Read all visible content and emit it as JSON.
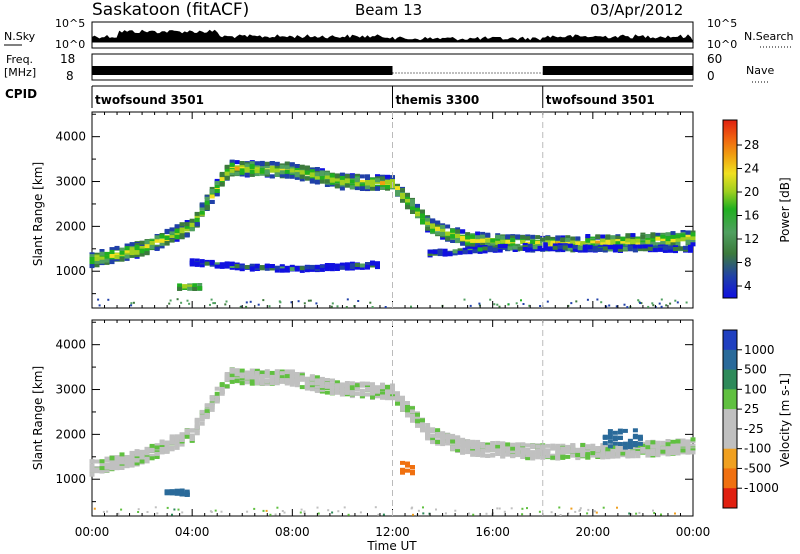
{
  "header": {
    "station": "Saskatoon (fitACF)",
    "beam": "Beam 13",
    "date": "03/Apr/2012"
  },
  "top_panels": {
    "nsky_label": "N.Sky",
    "nsky_ticks": [
      "10^5",
      "10^0"
    ],
    "nsearch_label": "N.Search",
    "nsearch_ticks": [
      "10^5",
      "10^0"
    ],
    "freq_label": "Freq.",
    "freq_unit": "[MHz]",
    "freq_ticks": [
      "18",
      "8"
    ],
    "nave_label": "Nave",
    "nave_ticks": [
      "60",
      "0"
    ],
    "cpid_label": "CPID",
    "cpid_segments": [
      {
        "label": "twofsound 3501",
        "start_hour": 0,
        "end_hour": 12
      },
      {
        "label": "themis 3300",
        "start_hour": 12,
        "end_hour": 18
      },
      {
        "label": "twofsound 3501",
        "start_hour": 18,
        "end_hour": 24
      }
    ]
  },
  "chart_data": [
    {
      "type": "heatmap",
      "quantity": "Power",
      "ylabel": "Slant Range [km]",
      "xlabel": "Time UT",
      "x_ticks": [
        "00:00",
        "04:00",
        "08:00",
        "12:00",
        "16:00",
        "20:00",
        "00:00"
      ],
      "x_range_hours": [
        0,
        24
      ],
      "y_ticks": [
        "1000",
        "2000",
        "3000",
        "4000"
      ],
      "ylim": [
        180,
        4550
      ],
      "colorbar_label": "Power [dB]",
      "colorbar_ticks": [
        "28",
        "24",
        "20",
        "16",
        "12",
        "8",
        "4"
      ],
      "colorbar_colors": [
        "#1010e0",
        "#2040a8",
        "#3c7a3c",
        "#50a060",
        "#20b020",
        "#a0d020",
        "#f0e020",
        "#f0a010",
        "#f06010",
        "#e02010"
      ],
      "features": [
        {
          "name": "main-echo-band",
          "hours": [
            0,
            2,
            4,
            5.5,
            8,
            10,
            12,
            13.5,
            15,
            18,
            21,
            23,
            24
          ],
          "range_km": [
            1250,
            1500,
            2000,
            3300,
            3250,
            3000,
            2950,
            2000,
            1700,
            1600,
            1650,
            1700,
            1750
          ],
          "power_db": 18
        },
        {
          "name": "lower-band",
          "hours": [
            4,
            6,
            8,
            10,
            11.5
          ],
          "range_km": [
            1200,
            1100,
            1050,
            1100,
            1150
          ],
          "power_db": 8
        },
        {
          "name": "near-range-patch",
          "hours": [
            3.5,
            4.4
          ],
          "range_km": [
            600,
            700
          ],
          "power_db": 20
        },
        {
          "name": "late-band",
          "hours": [
            13.5,
            16,
            18,
            20,
            24
          ],
          "range_km": [
            1400,
            1500,
            1550,
            1500,
            1500
          ],
          "power_db": 10
        }
      ]
    },
    {
      "type": "heatmap",
      "quantity": "Velocity",
      "ylabel": "Slant Range [km]",
      "xlabel": "Time UT",
      "x_ticks": [
        "00:00",
        "04:00",
        "08:00",
        "12:00",
        "16:00",
        "20:00",
        "00:00"
      ],
      "x_range_hours": [
        0,
        24
      ],
      "y_ticks": [
        "1000",
        "2000",
        "3000",
        "4000"
      ],
      "ylim": [
        180,
        4550
      ],
      "colorbar_label": "Velocity [m s-1]",
      "colorbar_ticks": [
        "1000",
        "500",
        "100",
        "25",
        "-25",
        "-100",
        "-500",
        "-1000"
      ],
      "colorbar_colors": [
        "#2040c0",
        "#2a6a9a",
        "#2e8a5a",
        "#60c040",
        "#c0c0c0",
        "#c0c0c0",
        "#f0a020",
        "#f07010",
        "#e02010"
      ],
      "features": [
        {
          "name": "main-echo-band",
          "hours": [
            0,
            2,
            4,
            5.5,
            8,
            10,
            12,
            13.5,
            15,
            18,
            21,
            23,
            24
          ],
          "range_km": [
            1250,
            1500,
            2000,
            3300,
            3250,
            3000,
            2950,
            2000,
            1700,
            1600,
            1650,
            1700,
            1750
          ],
          "velocity_ms": 0
        },
        {
          "name": "positive-patch",
          "hours": [
            3,
            4
          ],
          "range_km": [
            650,
            750
          ],
          "velocity_ms": 500
        },
        {
          "name": "negative-patch",
          "hours": [
            12.4,
            12.9
          ],
          "range_km": [
            1100,
            1400
          ],
          "velocity_ms": -500
        },
        {
          "name": "positive-patch-late",
          "hours": [
            20.5,
            22
          ],
          "range_km": [
            1700,
            2100
          ],
          "velocity_ms": 500
        }
      ]
    }
  ]
}
